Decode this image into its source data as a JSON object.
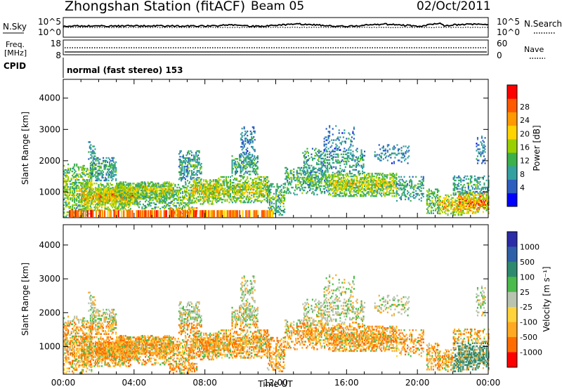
{
  "header": {
    "title": "Zhongshan Station (fitACF)",
    "beam": "Beam 05",
    "date": "02/Oct/2011"
  },
  "noise_panel": {
    "left_label": "N.Sky",
    "right_label": "N.Search",
    "ticks_left": [
      "10^5",
      "10^0"
    ],
    "ticks_right": [
      "10^5",
      "10^0"
    ]
  },
  "freq_panel": {
    "left_label_1": "Freq.",
    "left_label_2": "[MHz]",
    "right_label": "Nave",
    "ticks_left": [
      "18",
      "8"
    ],
    "ticks_right": [
      "60",
      "0"
    ]
  },
  "cpid": {
    "label": "CPID",
    "text": "normal (fast stereo) 153"
  },
  "x_axis": {
    "label": "Time UT",
    "ticks": [
      "00:00",
      "04:00",
      "08:00",
      "12:00",
      "16:00",
      "20:00",
      "00:00"
    ]
  },
  "colors": {
    "power_scale": [
      "#0000ff",
      "#2e5fc0",
      "#35a0a0",
      "#3cb04b",
      "#9ad000",
      "#ffd400",
      "#ff9a00",
      "#ff5a00",
      "#ff0000"
    ],
    "velocity_scale": [
      "#2c2ca8",
      "#2f5fa8",
      "#2e8a6e",
      "#4bbb4b",
      "#b8c4b0",
      "#ffd33a",
      "#ffaa22",
      "#ff6d00",
      "#ff0000"
    ]
  },
  "chart_data": [
    {
      "type": "heatmap",
      "name": "power",
      "ylabel": "Slant Range [km]",
      "yticks": [
        1000,
        2000,
        3000,
        4000
      ],
      "ylim": [
        180,
        4600
      ],
      "xlim": [
        0,
        24
      ],
      "colorbar_label": "Power [dB]",
      "colorbar_ticks": [
        "4",
        "8",
        "12",
        "16",
        "20",
        "24",
        "28"
      ],
      "clim": [
        0,
        30
      ]
    },
    {
      "type": "heatmap",
      "name": "velocity",
      "ylabel": "Slant Range [km]",
      "yticks": [
        1000,
        2000,
        3000,
        4000
      ],
      "ylim": [
        180,
        4600
      ],
      "xlim": [
        0,
        24
      ],
      "colorbar_label": "Velocity [m s⁻¹]",
      "colorbar_ticks": [
        "1000",
        "500",
        "100",
        "25",
        "-25",
        "-100",
        "-500",
        "-1000"
      ]
    }
  ]
}
